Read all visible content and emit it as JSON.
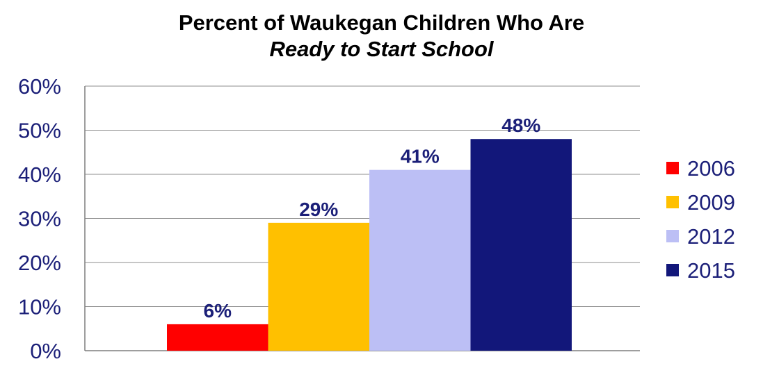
{
  "chart_data": {
    "type": "bar",
    "title_line1": "Percent of Waukegan Children Who Are",
    "title_line2": "Ready to Start School",
    "categories": [
      "2006",
      "2009",
      "2012",
      "2015"
    ],
    "values": [
      6,
      29,
      41,
      48
    ],
    "value_labels": [
      "6%",
      "29%",
      "41%",
      "48%"
    ],
    "colors": [
      "#ff0000",
      "#ffc000",
      "#bcbff5",
      "#12177a"
    ],
    "y_ticks": [
      "0%",
      "10%",
      "20%",
      "30%",
      "40%",
      "50%",
      "60%"
    ],
    "ylim": [
      0,
      60
    ],
    "grid": true,
    "legend_position": "right"
  }
}
